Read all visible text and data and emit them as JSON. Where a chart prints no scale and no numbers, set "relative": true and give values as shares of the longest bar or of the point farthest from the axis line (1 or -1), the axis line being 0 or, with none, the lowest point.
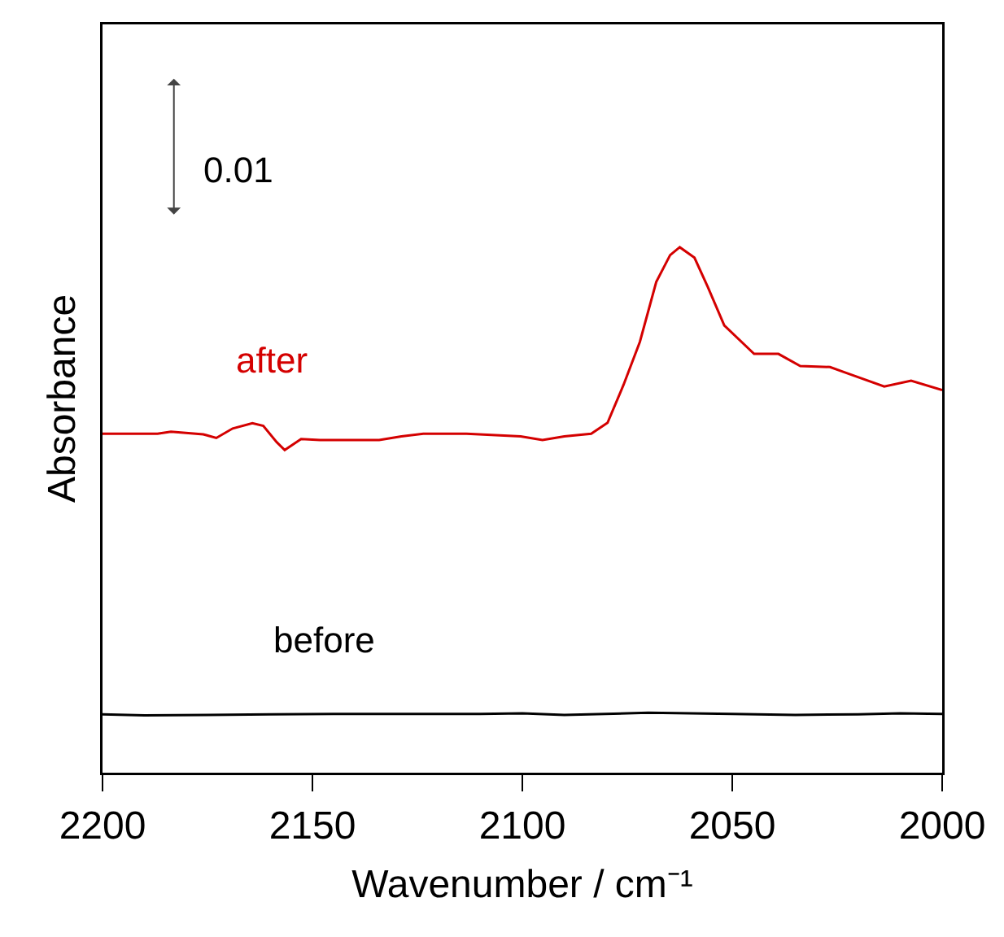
{
  "chart_data": {
    "type": "line",
    "relative": true,
    "xlabel": "Wavenumber / cm⁻¹",
    "ylabel": "Absorbance",
    "xlim": [
      2200,
      2000
    ],
    "xticks": [
      2200,
      2150,
      2100,
      2050,
      2000
    ],
    "annotations": [
      "0.01"
    ],
    "legend": false,
    "grid": false,
    "series": [
      {
        "name": "after",
        "color": "#d40000",
        "x": [
          2200,
          2186.9,
          2183.7,
          2176,
          2172.9,
          2169,
          2164.3,
          2161.7,
          2158.5,
          2156.6,
          2152.7,
          2148.2,
          2134.1,
          2128.8,
          2123.6,
          2113.3,
          2100.4,
          2095.2,
          2090,
          2083.6,
          2079.7,
          2075.9,
          2072,
          2068.1,
          2064.8,
          2062.5,
          2059,
          2055.8,
          2051.9,
          2044.8,
          2039,
          2033.8,
          2026.7,
          2022.9,
          2013.8,
          2007.4,
          2000
        ],
        "values": [
          0.645,
          0.645,
          0.649,
          0.644,
          0.637,
          0.655,
          0.665,
          0.66,
          0.629,
          0.614,
          0.635,
          0.633,
          0.633,
          0.64,
          0.645,
          0.645,
          0.64,
          0.633,
          0.64,
          0.645,
          0.666,
          0.738,
          0.82,
          0.934,
          0.985,
          1,
          0.98,
          0.924,
          0.851,
          0.797,
          0.797,
          0.774,
          0.772,
          0.761,
          0.735,
          0.746,
          0.728
        ]
      },
      {
        "name": "before",
        "color": "#000000",
        "x": [
          2200,
          2190,
          2175,
          2160,
          2145,
          2130,
          2110,
          2100,
          2090,
          2070,
          2050,
          2035,
          2020,
          2010,
          2000
        ],
        "values": [
          0.111,
          0.109,
          0.11,
          0.111,
          0.112,
          0.112,
          0.112,
          0.113,
          0.11,
          0.114,
          0.112,
          0.11,
          0.111,
          0.113,
          0.112
        ]
      }
    ]
  }
}
